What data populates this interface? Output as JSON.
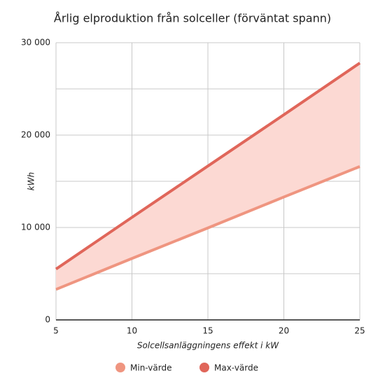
{
  "chart_data": {
    "type": "range-line",
    "title": "Årlig elproduktion från solceller (förväntat spann)",
    "x_label": "Solcellsanläggningens effekt i kW",
    "y_label": "kWh",
    "x": [
      5,
      10,
      15,
      20,
      25
    ],
    "series": [
      {
        "name": "Min-värde",
        "color": "#ef9580",
        "values": [
          3300,
          6650,
          9950,
          13300,
          16600
        ]
      },
      {
        "name": "Max-värde",
        "color": "#e0665a",
        "values": [
          5500,
          11100,
          16650,
          22200,
          27800
        ]
      }
    ],
    "band_color": "#fcd9d3",
    "xlim": [
      5,
      25
    ],
    "xticks": [
      5,
      10,
      15,
      20,
      25
    ],
    "ylim": [
      0,
      30000
    ],
    "yticks": [
      {
        "value": 0,
        "label": "0"
      },
      {
        "value": 10000,
        "label": "10 000"
      },
      {
        "value": 20000,
        "label": "20 000"
      },
      {
        "value": 30000,
        "label": "30 000"
      }
    ],
    "minor_yticks": [
      5000,
      15000,
      25000
    ],
    "grid": true,
    "legend": "bottom"
  }
}
